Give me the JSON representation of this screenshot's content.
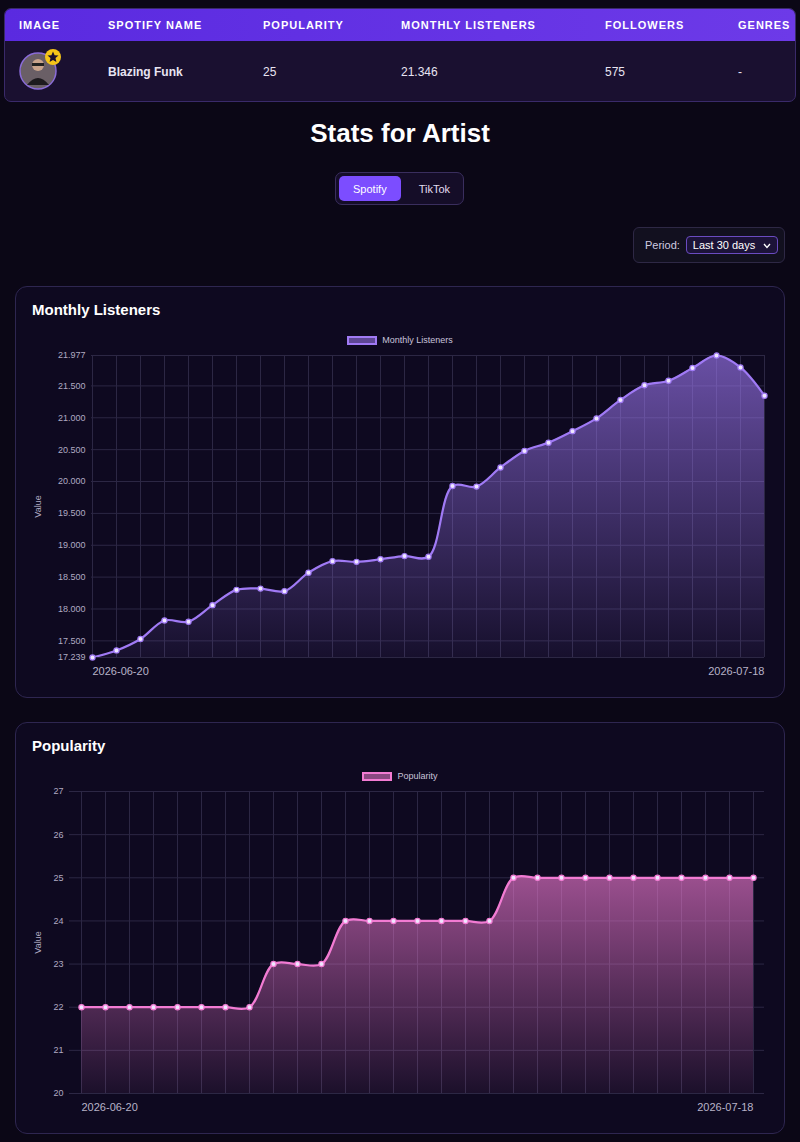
{
  "table": {
    "columns": [
      "IMAGE",
      "SPOTIFY NAME",
      "POPULARITY",
      "MONTHLY LISTENERS",
      "FOLLOWERS",
      "GENRES"
    ],
    "rows": [
      [
        "Blazing Funk",
        "25",
        "21.346",
        "575",
        "-"
      ]
    ]
  },
  "heading": "Stats for Artist",
  "tabs": [
    "Spotify",
    "TikTok"
  ],
  "active_tab": "Spotify",
  "period": {
    "label": "Period:",
    "selected": "Last 30 days"
  },
  "chart_data": [
    {
      "type": "area",
      "title": "Monthly Listeners",
      "ylabel": "Value",
      "x": [
        "2026-06-20",
        "2026-06-21",
        "2026-06-22",
        "2026-06-23",
        "2026-06-24",
        "2026-06-25",
        "2026-06-26",
        "2026-06-27",
        "2026-06-28",
        "2026-06-29",
        "2026-06-30",
        "2026-07-01",
        "2026-07-02",
        "2026-07-03",
        "2026-07-04",
        "2026-07-05",
        "2026-07-06",
        "2026-07-07",
        "2026-07-08",
        "2026-07-09",
        "2026-07-10",
        "2026-07-11",
        "2026-07-12",
        "2026-07-13",
        "2026-07-14",
        "2026-07-15",
        "2026-07-16",
        "2026-07-17",
        "2026-07-18"
      ],
      "series": [
        {
          "name": "Monthly Listeners",
          "color": "#a07af5",
          "values": [
            17239,
            17350,
            17530,
            17820,
            17800,
            18060,
            18300,
            18320,
            18280,
            18570,
            18750,
            18740,
            18780,
            18830,
            18820,
            19930,
            19920,
            20220,
            20480,
            20610,
            20790,
            20990,
            21280,
            21510,
            21580,
            21780,
            21977,
            21790,
            21346
          ]
        }
      ],
      "ylim": [
        17239,
        21977
      ],
      "yticks": [
        {
          "value": 17239,
          "label": "17.239"
        },
        {
          "value": 17500,
          "label": "17.500"
        },
        {
          "value": 18000,
          "label": "18.000"
        },
        {
          "value": 18500,
          "label": "18.500"
        },
        {
          "value": 19000,
          "label": "19.000"
        },
        {
          "value": 19500,
          "label": "19.500"
        },
        {
          "value": 20000,
          "label": "20.000"
        },
        {
          "value": 20500,
          "label": "20.500"
        },
        {
          "value": 21000,
          "label": "21.000"
        },
        {
          "value": 21500,
          "label": "21.500"
        },
        {
          "value": 21977,
          "label": "21.977"
        }
      ],
      "xticks": [
        "2026-06-20",
        "2026-07-18"
      ],
      "grid": true,
      "legend": "top",
      "marker": "circle"
    },
    {
      "type": "area",
      "title": "Popularity",
      "ylabel": "Value",
      "x": [
        "2026-06-20",
        "2026-06-21",
        "2026-06-22",
        "2026-06-23",
        "2026-06-24",
        "2026-06-25",
        "2026-06-26",
        "2026-06-27",
        "2026-06-28",
        "2026-06-29",
        "2026-06-30",
        "2026-07-01",
        "2026-07-02",
        "2026-07-03",
        "2026-07-04",
        "2026-07-05",
        "2026-07-06",
        "2026-07-07",
        "2026-07-08",
        "2026-07-09",
        "2026-07-10",
        "2026-07-11",
        "2026-07-12",
        "2026-07-13",
        "2026-07-14",
        "2026-07-15",
        "2026-07-16",
        "2026-07-17",
        "2026-07-18"
      ],
      "series": [
        {
          "name": "Popularity",
          "color": "#f27bd3",
          "values": [
            22,
            22,
            22,
            22,
            22,
            22,
            22,
            22,
            23,
            23,
            23,
            24,
            24,
            24,
            24,
            24,
            24,
            24,
            25,
            25,
            25,
            25,
            25,
            25,
            25,
            25,
            25,
            25,
            25
          ]
        }
      ],
      "ylim": [
        20,
        27
      ],
      "yticks": [
        20,
        21,
        22,
        23,
        24,
        25,
        26,
        27
      ],
      "xticks": [
        "2026-06-20",
        "2026-07-18"
      ],
      "grid": true,
      "legend": "top",
      "marker": "circle"
    }
  ]
}
